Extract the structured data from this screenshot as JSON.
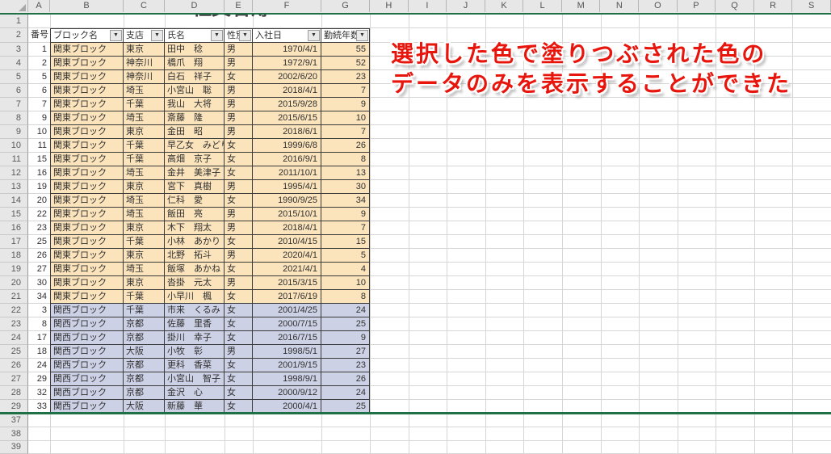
{
  "sheet": {
    "column_letters": [
      "A",
      "B",
      "C",
      "D",
      "E",
      "F",
      "G",
      "H",
      "I",
      "J",
      "K",
      "L",
      "M",
      "N",
      "O",
      "P",
      "Q",
      "R",
      "S"
    ],
    "row_numbers": [
      1,
      2,
      3,
      4,
      5,
      6,
      7,
      8,
      9,
      10,
      11,
      12,
      13,
      14,
      15,
      16,
      17,
      18,
      19,
      20,
      21,
      22,
      23,
      24,
      25,
      26,
      27,
      28,
      29,
      37,
      38,
      39
    ]
  },
  "title": {
    "text": "社員名簿"
  },
  "annotation": {
    "line1": "選択した色で塗りつぶされた色の",
    "line2": "データのみを表示することができた",
    "color": "#e8150c"
  },
  "table": {
    "headers": [
      {
        "label": "番号",
        "filter": false
      },
      {
        "label": "ブロック名",
        "filter": true
      },
      {
        "label": "支店",
        "filter": true
      },
      {
        "label": "氏名",
        "filter": true
      },
      {
        "label": "性別",
        "filter": true
      },
      {
        "label": "入社日",
        "filter": true
      },
      {
        "label": "勤続年数",
        "filter": true
      }
    ],
    "rows": [
      {
        "no": "1",
        "block": "関東ブロック",
        "branch": "東京",
        "name": "田中　稔",
        "gender": "男",
        "date": "1970/4/1",
        "years": "55",
        "group": "kanto"
      },
      {
        "no": "2",
        "block": "関東ブロック",
        "branch": "神奈川",
        "name": "橋爪　翔",
        "gender": "男",
        "date": "1972/9/1",
        "years": "52",
        "group": "kanto"
      },
      {
        "no": "5",
        "block": "関東ブロック",
        "branch": "神奈川",
        "name": "白石　祥子",
        "gender": "女",
        "date": "2002/6/20",
        "years": "23",
        "group": "kanto"
      },
      {
        "no": "6",
        "block": "関東ブロック",
        "branch": "埼玉",
        "name": "小宮山　聡",
        "gender": "男",
        "date": "2018/4/1",
        "years": "7",
        "group": "kanto"
      },
      {
        "no": "7",
        "block": "関東ブロック",
        "branch": "千葉",
        "name": "我山　大将",
        "gender": "男",
        "date": "2015/9/28",
        "years": "9",
        "group": "kanto"
      },
      {
        "no": "9",
        "block": "関東ブロック",
        "branch": "埼玉",
        "name": "斎藤　隆",
        "gender": "男",
        "date": "2015/6/15",
        "years": "10",
        "group": "kanto"
      },
      {
        "no": "10",
        "block": "関東ブロック",
        "branch": "東京",
        "name": "金田　昭",
        "gender": "男",
        "date": "2018/6/1",
        "years": "7",
        "group": "kanto"
      },
      {
        "no": "11",
        "block": "関東ブロック",
        "branch": "千葉",
        "name": "早乙女　みどり",
        "gender": "女",
        "date": "1999/6/8",
        "years": "26",
        "group": "kanto"
      },
      {
        "no": "15",
        "block": "関東ブロック",
        "branch": "千葉",
        "name": "高畑　京子",
        "gender": "女",
        "date": "2016/9/1",
        "years": "8",
        "group": "kanto"
      },
      {
        "no": "16",
        "block": "関東ブロック",
        "branch": "埼玉",
        "name": "金井　美津子",
        "gender": "女",
        "date": "2011/10/1",
        "years": "13",
        "group": "kanto"
      },
      {
        "no": "19",
        "block": "関東ブロック",
        "branch": "東京",
        "name": "宮下　真樹",
        "gender": "男",
        "date": "1995/4/1",
        "years": "30",
        "group": "kanto"
      },
      {
        "no": "20",
        "block": "関東ブロック",
        "branch": "埼玉",
        "name": "仁科　愛",
        "gender": "女",
        "date": "1990/9/25",
        "years": "34",
        "group": "kanto"
      },
      {
        "no": "22",
        "block": "関東ブロック",
        "branch": "埼玉",
        "name": "飯田　亮",
        "gender": "男",
        "date": "2015/10/1",
        "years": "9",
        "group": "kanto"
      },
      {
        "no": "23",
        "block": "関東ブロック",
        "branch": "東京",
        "name": "木下　翔太",
        "gender": "男",
        "date": "2018/4/1",
        "years": "7",
        "group": "kanto"
      },
      {
        "no": "25",
        "block": "関東ブロック",
        "branch": "千葉",
        "name": "小林　あかり",
        "gender": "女",
        "date": "2010/4/15",
        "years": "15",
        "group": "kanto"
      },
      {
        "no": "26",
        "block": "関東ブロック",
        "branch": "東京",
        "name": "北野　拓斗",
        "gender": "男",
        "date": "2020/4/1",
        "years": "5",
        "group": "kanto"
      },
      {
        "no": "27",
        "block": "関東ブロック",
        "branch": "埼玉",
        "name": "飯塚　あかね",
        "gender": "女",
        "date": "2021/4/1",
        "years": "4",
        "group": "kanto"
      },
      {
        "no": "30",
        "block": "関東ブロック",
        "branch": "東京",
        "name": "沓掛　元太",
        "gender": "男",
        "date": "2015/3/15",
        "years": "10",
        "group": "kanto"
      },
      {
        "no": "34",
        "block": "関東ブロック",
        "branch": "千葉",
        "name": "小早川　楓",
        "gender": "女",
        "date": "2017/6/19",
        "years": "8",
        "group": "kanto"
      },
      {
        "no": "3",
        "block": "関西ブロック",
        "branch": "千葉",
        "name": "市来　くるみ",
        "gender": "女",
        "date": "2001/4/25",
        "years": "24",
        "group": "kansai"
      },
      {
        "no": "8",
        "block": "関西ブロック",
        "branch": "京都",
        "name": "佐藤　里香",
        "gender": "女",
        "date": "2000/7/15",
        "years": "25",
        "group": "kansai"
      },
      {
        "no": "17",
        "block": "関西ブロック",
        "branch": "京都",
        "name": "掛川　幸子",
        "gender": "女",
        "date": "2016/7/15",
        "years": "9",
        "group": "kansai"
      },
      {
        "no": "18",
        "block": "関西ブロック",
        "branch": "大阪",
        "name": "小牧　彰",
        "gender": "男",
        "date": "1998/5/1",
        "years": "27",
        "group": "kansai"
      },
      {
        "no": "24",
        "block": "関西ブロック",
        "branch": "京都",
        "name": "更科　香菜",
        "gender": "女",
        "date": "2001/9/15",
        "years": "23",
        "group": "kansai"
      },
      {
        "no": "29",
        "block": "関西ブロック",
        "branch": "京都",
        "name": "小宮山　智子",
        "gender": "女",
        "date": "1998/9/1",
        "years": "26",
        "group": "kansai"
      },
      {
        "no": "32",
        "block": "関西ブロック",
        "branch": "京都",
        "name": "金沢　心",
        "gender": "女",
        "date": "2000/9/12",
        "years": "24",
        "group": "kansai"
      },
      {
        "no": "33",
        "block": "関西ブロック",
        "branch": "大阪",
        "name": "新藤　華",
        "gender": "女",
        "date": "2000/4/1",
        "years": "25",
        "group": "kansai"
      }
    ]
  },
  "icons": {
    "filter_dropdown": "▼",
    "select_all_corner": "corner-triangle"
  },
  "colors": {
    "kanto_fill": "#fbe3bb",
    "kansai_fill": "#cdd1e6",
    "green_line": "#1e7145",
    "annotation_red": "#e8150c",
    "header_strip": "#e7e7e7",
    "table_border": "#3a3a3a",
    "gridline": "#d6d6d6"
  }
}
